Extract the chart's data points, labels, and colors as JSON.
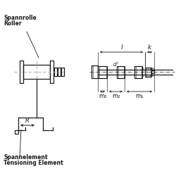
{
  "bg_color": "#ffffff",
  "line_color": "#1a1a1a",
  "dash_color": "#aaaaaa",
  "label_color": "#1a1a1a",
  "labels": {
    "spannrolle": "Spannrolle",
    "roller": "Roller",
    "spannelement": "Spannelement",
    "tensioning": "Tensioning Element",
    "l": "l",
    "k": "k",
    "d": "d",
    "m1": "m₁",
    "m2a": "m₂",
    "m2b": "m₂",
    "R": "R"
  },
  "figsize": [
    2.5,
    2.5
  ],
  "dpi": 100
}
